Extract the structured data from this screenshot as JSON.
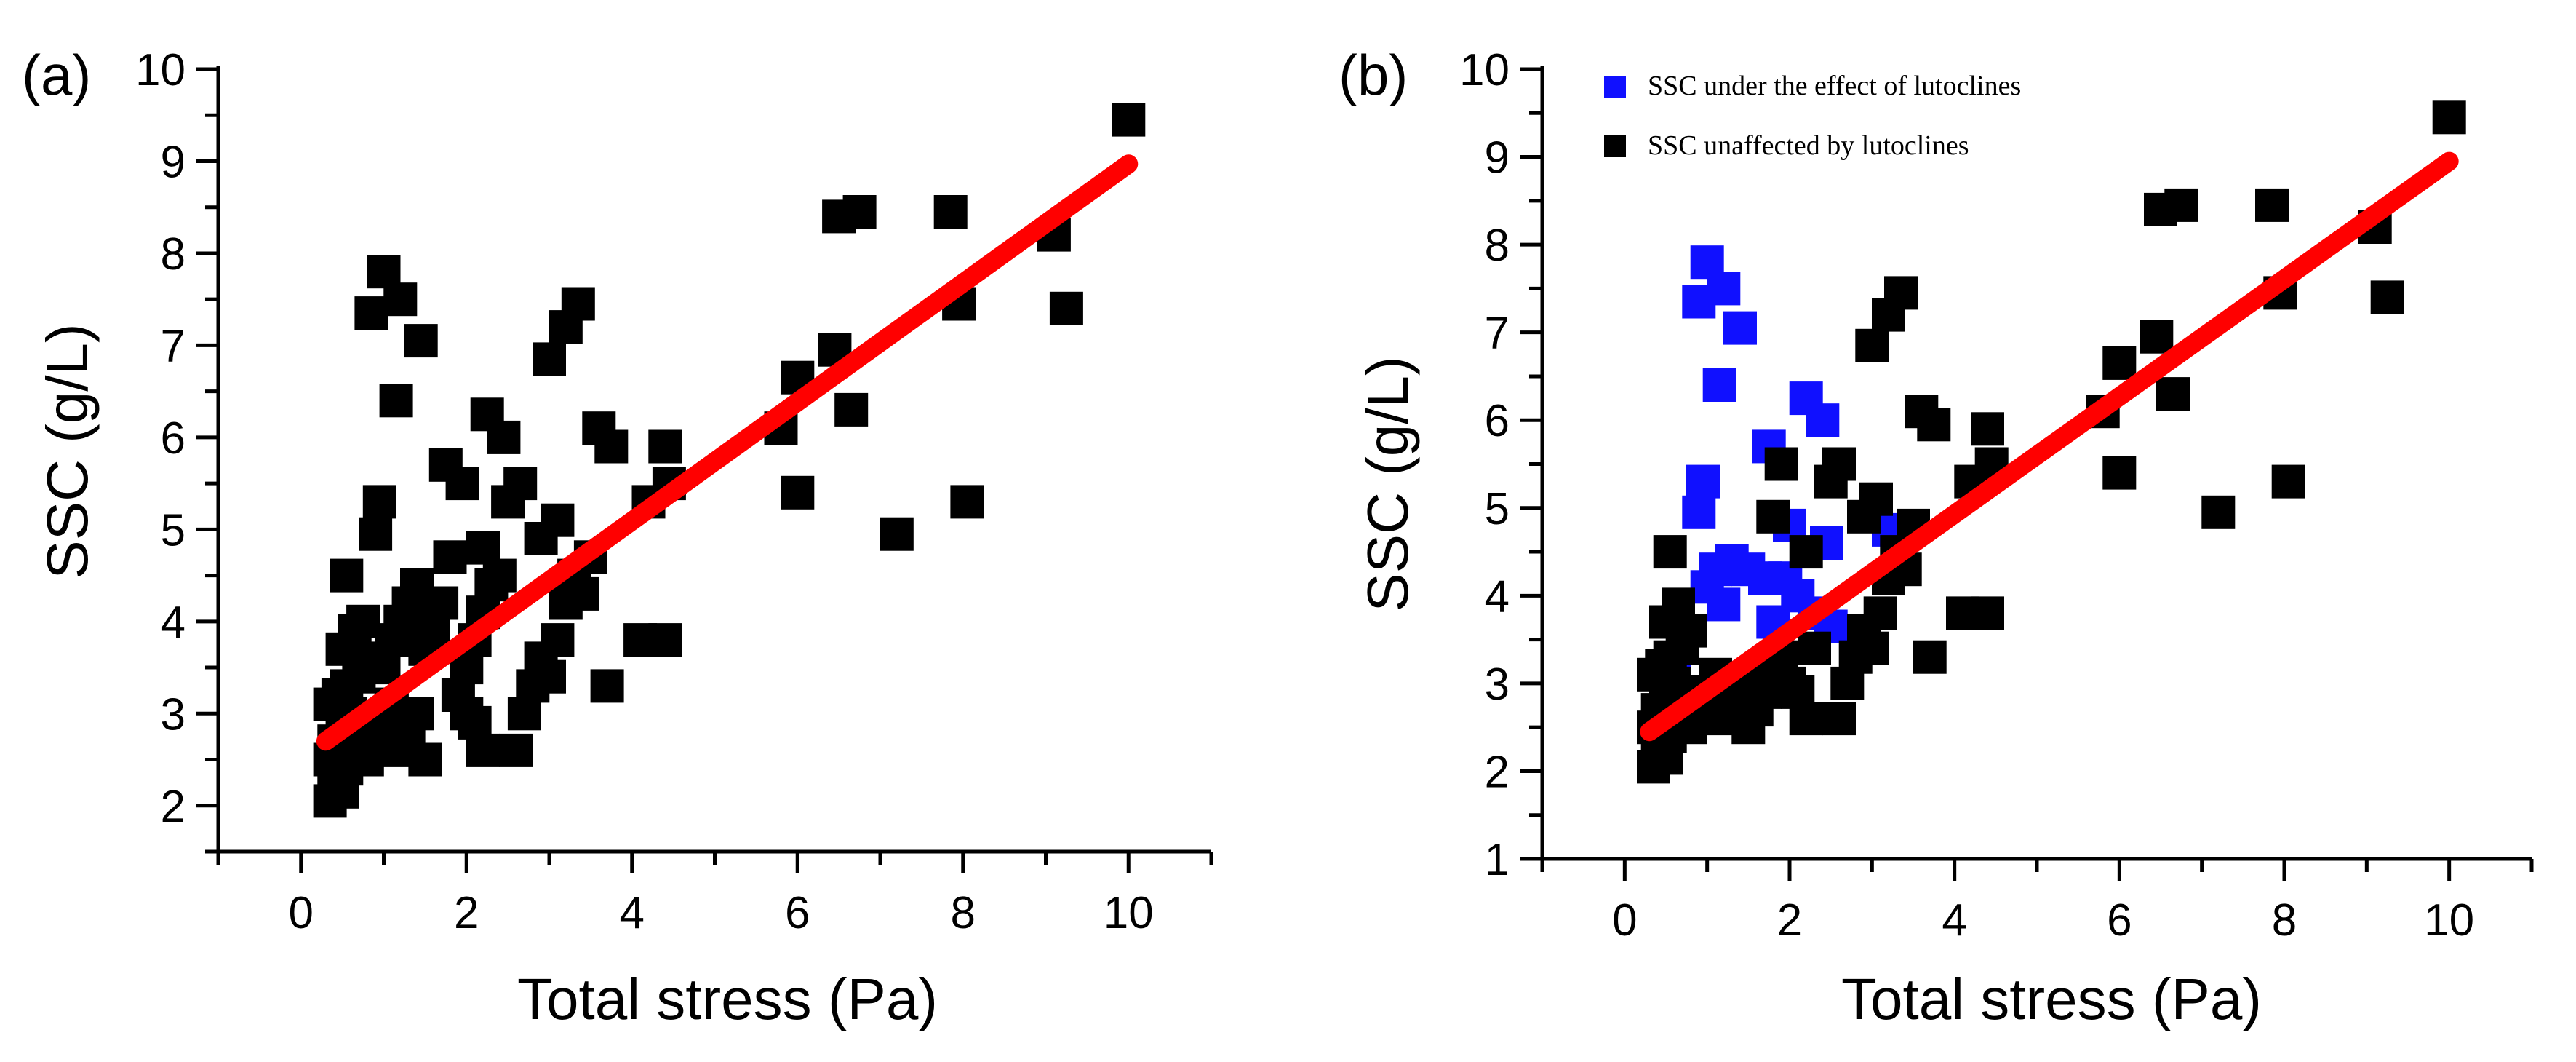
{
  "figure": {
    "panels": [
      {
        "panel_label": "(a)",
        "xlabel": "Total stress (Pa)",
        "ylabel": "SSC (g/L)",
        "legend": []
      },
      {
        "panel_label": "(b)",
        "xlabel": "Total stress (Pa)",
        "ylabel": "SSC (g/L)",
        "legend": [
          {
            "label": "SSC under the effect of lutoclines",
            "color": "#1010ff"
          },
          {
            "label": "SSC unaffected by lutoclines",
            "color": "#000000"
          }
        ]
      }
    ]
  },
  "chart_data": [
    {
      "type": "scatter",
      "panel": "(a)",
      "xlabel": "Total stress (Pa)",
      "ylabel": "SSC (g/L)",
      "xlim": [
        -1,
        11
      ],
      "ylim": [
        1.5,
        10
      ],
      "x_ticks": [
        0,
        2,
        4,
        6,
        8,
        10
      ],
      "y_ticks": [
        2,
        3,
        4,
        5,
        6,
        7,
        8,
        9,
        10
      ],
      "grid": false,
      "series": [
        {
          "marker": "square",
          "color": "#000000",
          "points": [
            [
              0.35,
              2.05
            ],
            [
              0.4,
              2.2
            ],
            [
              0.45,
              2.3
            ],
            [
              0.5,
              2.15
            ],
            [
              0.55,
              2.4
            ],
            [
              0.6,
              2.6
            ],
            [
              0.35,
              2.5
            ],
            [
              0.4,
              2.7
            ],
            [
              0.5,
              2.8
            ],
            [
              0.6,
              3.0
            ],
            [
              0.45,
              3.2
            ],
            [
              0.35,
              3.1
            ],
            [
              0.55,
              3.3
            ],
            [
              0.7,
              3.4
            ],
            [
              0.8,
              3.6
            ],
            [
              0.5,
              3.7
            ],
            [
              0.65,
              3.9
            ],
            [
              0.75,
              4.0
            ],
            [
              0.55,
              4.5
            ],
            [
              0.9,
              4.95
            ],
            [
              0.95,
              5.3
            ],
            [
              0.85,
              7.35
            ],
            [
              1.0,
              7.8
            ],
            [
              1.2,
              7.5
            ],
            [
              1.45,
              7.05
            ],
            [
              1.15,
              6.4
            ],
            [
              0.8,
              2.5
            ],
            [
              0.9,
              2.7
            ],
            [
              1.0,
              2.9
            ],
            [
              1.1,
              3.1
            ],
            [
              1.2,
              2.6
            ],
            [
              1.3,
              2.8
            ],
            [
              1.4,
              3.0
            ],
            [
              1.5,
              2.5
            ],
            [
              1.0,
              3.5
            ],
            [
              1.1,
              3.8
            ],
            [
              1.2,
              4.0
            ],
            [
              1.3,
              4.2
            ],
            [
              1.4,
              4.4
            ],
            [
              1.5,
              3.7
            ],
            [
              1.6,
              3.9
            ],
            [
              1.7,
              4.2
            ],
            [
              1.8,
              4.7
            ],
            [
              1.75,
              5.7
            ],
            [
              1.95,
              5.5
            ],
            [
              1.9,
              3.2
            ],
            [
              2.0,
              3.0
            ],
            [
              2.1,
              2.9
            ],
            [
              2.2,
              2.6
            ],
            [
              2.0,
              3.5
            ],
            [
              2.1,
              3.8
            ],
            [
              2.2,
              4.1
            ],
            [
              2.3,
              4.4
            ],
            [
              2.2,
              4.8
            ],
            [
              2.4,
              4.5
            ],
            [
              2.5,
              5.3
            ],
            [
              2.65,
              5.5
            ],
            [
              2.25,
              6.25
            ],
            [
              2.45,
              6.0
            ],
            [
              2.6,
              2.6
            ],
            [
              2.7,
              3.0
            ],
            [
              2.8,
              3.3
            ],
            [
              2.9,
              3.6
            ],
            [
              3.0,
              3.4
            ],
            [
              3.1,
              3.8
            ],
            [
              3.2,
              4.2
            ],
            [
              3.3,
              4.5
            ],
            [
              3.1,
              5.1
            ],
            [
              2.9,
              4.9
            ],
            [
              3.4,
              4.3
            ],
            [
              3.5,
              4.7
            ],
            [
              3.7,
              3.3
            ],
            [
              3.0,
              6.85
            ],
            [
              3.2,
              7.2
            ],
            [
              3.35,
              7.45
            ],
            [
              3.6,
              6.1
            ],
            [
              3.75,
              5.9
            ],
            [
              4.1,
              3.8
            ],
            [
              4.4,
              3.8
            ],
            [
              4.2,
              5.3
            ],
            [
              4.4,
              5.9
            ],
            [
              4.45,
              5.5
            ],
            [
              5.8,
              6.1
            ],
            [
              6.0,
              6.65
            ],
            [
              6.0,
              5.4
            ],
            [
              6.5,
              8.4
            ],
            [
              6.75,
              8.45
            ],
            [
              6.45,
              6.95
            ],
            [
              6.65,
              6.3
            ],
            [
              7.2,
              4.95
            ],
            [
              7.85,
              8.45
            ],
            [
              7.95,
              7.45
            ],
            [
              8.05,
              5.3
            ],
            [
              9.1,
              8.2
            ],
            [
              9.25,
              7.4
            ],
            [
              10.0,
              9.45
            ]
          ]
        }
      ],
      "fit_line": {
        "color": "#ff0000",
        "x": [
          0.3,
          10.0
        ],
        "y": [
          2.7,
          8.97
        ]
      }
    },
    {
      "type": "scatter",
      "panel": "(b)",
      "xlabel": "Total stress (Pa)",
      "ylabel": "SSC (g/L)",
      "xlim": [
        -1,
        11
      ],
      "ylim": [
        1,
        10
      ],
      "x_ticks": [
        0,
        2,
        4,
        6,
        8,
        10
      ],
      "y_ticks": [
        1,
        2,
        3,
        4,
        5,
        6,
        7,
        8,
        9,
        10
      ],
      "grid": false,
      "legend_position": "top-left",
      "series": [
        {
          "name": "SSC under the effect of lutoclines",
          "marker": "square",
          "color": "#1010ff",
          "points": [
            [
              0.9,
              7.35
            ],
            [
              1.0,
              7.8
            ],
            [
              1.2,
              7.5
            ],
            [
              1.4,
              7.05
            ],
            [
              1.15,
              6.4
            ],
            [
              0.9,
              4.95
            ],
            [
              0.95,
              5.3
            ],
            [
              1.0,
              4.1
            ],
            [
              1.1,
              4.3
            ],
            [
              1.2,
              3.9
            ],
            [
              1.3,
              4.4
            ],
            [
              1.5,
              4.3
            ],
            [
              1.7,
              4.2
            ],
            [
              1.8,
              3.7
            ],
            [
              1.75,
              5.7
            ],
            [
              1.95,
              4.2
            ],
            [
              2.0,
              4.8
            ],
            [
              2.1,
              4.0
            ],
            [
              2.2,
              6.25
            ],
            [
              2.4,
              6.0
            ],
            [
              2.3,
              3.8
            ],
            [
              2.5,
              3.65
            ],
            [
              2.45,
              4.6
            ],
            [
              3.2,
              4.75
            ],
            [
              0.6,
              3.1
            ]
          ]
        },
        {
          "name": "SSC unaffected by lutoclines",
          "marker": "square",
          "color": "#000000",
          "points": [
            [
              0.35,
              2.05
            ],
            [
              0.4,
              2.2
            ],
            [
              0.45,
              2.3
            ],
            [
              0.5,
              2.15
            ],
            [
              0.55,
              2.4
            ],
            [
              0.6,
              2.6
            ],
            [
              0.35,
              2.5
            ],
            [
              0.4,
              2.7
            ],
            [
              0.5,
              2.8
            ],
            [
              0.6,
              3.0
            ],
            [
              0.45,
              3.2
            ],
            [
              0.35,
              3.1
            ],
            [
              0.55,
              3.3
            ],
            [
              0.7,
              3.4
            ],
            [
              0.8,
              3.6
            ],
            [
              0.5,
              3.7
            ],
            [
              0.65,
              3.9
            ],
            [
              0.55,
              4.5
            ],
            [
              0.8,
              2.5
            ],
            [
              0.9,
              2.7
            ],
            [
              1.0,
              2.9
            ],
            [
              1.1,
              3.1
            ],
            [
              1.2,
              2.6
            ],
            [
              1.3,
              2.8
            ],
            [
              1.4,
              3.0
            ],
            [
              1.5,
              2.5
            ],
            [
              1.6,
              2.7
            ],
            [
              1.7,
              2.9
            ],
            [
              1.8,
              3.1
            ],
            [
              1.9,
              3.3
            ],
            [
              2.0,
              3.0
            ],
            [
              2.1,
              2.9
            ],
            [
              2.2,
              2.6
            ],
            [
              2.3,
              3.4
            ],
            [
              1.8,
              4.9
            ],
            [
              1.9,
              5.5
            ],
            [
              2.2,
              4.5
            ],
            [
              2.5,
              5.3
            ],
            [
              2.6,
              5.5
            ],
            [
              2.6,
              2.6
            ],
            [
              2.7,
              3.0
            ],
            [
              2.8,
              3.3
            ],
            [
              2.9,
              3.6
            ],
            [
              3.0,
              3.4
            ],
            [
              3.1,
              3.8
            ],
            [
              3.2,
              4.2
            ],
            [
              3.3,
              4.5
            ],
            [
              3.05,
              5.1
            ],
            [
              2.9,
              4.9
            ],
            [
              3.4,
              4.3
            ],
            [
              3.5,
              4.8
            ],
            [
              3.7,
              3.3
            ],
            [
              3.0,
              6.85
            ],
            [
              3.2,
              7.2
            ],
            [
              3.35,
              7.45
            ],
            [
              3.6,
              6.1
            ],
            [
              3.75,
              5.95
            ],
            [
              4.1,
              3.8
            ],
            [
              4.4,
              3.8
            ],
            [
              4.2,
              5.3
            ],
            [
              4.4,
              5.9
            ],
            [
              4.45,
              5.5
            ],
            [
              5.8,
              6.1
            ],
            [
              6.0,
              6.65
            ],
            [
              6.0,
              5.4
            ],
            [
              6.5,
              8.4
            ],
            [
              6.75,
              8.45
            ],
            [
              6.45,
              6.95
            ],
            [
              6.65,
              6.3
            ],
            [
              7.2,
              4.95
            ],
            [
              7.85,
              8.45
            ],
            [
              7.95,
              7.45
            ],
            [
              8.05,
              5.3
            ],
            [
              9.1,
              8.2
            ],
            [
              9.25,
              7.4
            ],
            [
              10.0,
              9.45
            ]
          ]
        }
      ],
      "fit_line": {
        "color": "#ff0000",
        "x": [
          0.3,
          10.0
        ],
        "y": [
          2.45,
          8.95
        ]
      }
    }
  ]
}
